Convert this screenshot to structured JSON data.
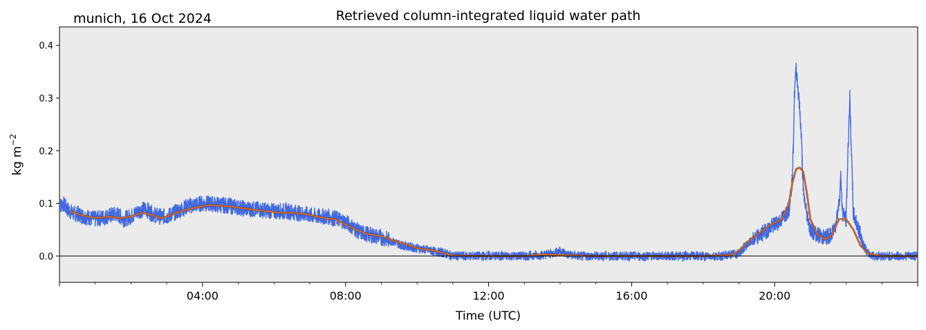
{
  "location_date": "munich, 16 Oct 2024",
  "chart_data": {
    "type": "line",
    "title": "Retrieved column-integrated liquid water path",
    "xlabel": "Time (UTC)",
    "ylabel": "kg m",
    "ylabel_superscript": "−2",
    "xlim_hours": [
      0,
      24
    ],
    "ylim": [
      -0.05,
      0.435
    ],
    "x_ticks": [
      {
        "hour": 0,
        "label": ""
      },
      {
        "hour": 4,
        "label": "04:00"
      },
      {
        "hour": 8,
        "label": "08:00"
      },
      {
        "hour": 12,
        "label": "12:00"
      },
      {
        "hour": 16,
        "label": "16:00"
      },
      {
        "hour": 20,
        "label": "20:00"
      },
      {
        "hour": 24,
        "label": ""
      }
    ],
    "x_minor_ticks": [
      1,
      2,
      3,
      5,
      6,
      7,
      9,
      10,
      11,
      13,
      14,
      15,
      17,
      18,
      19,
      21,
      22,
      23
    ],
    "y_ticks": [
      {
        "value": 0.0,
        "label": "0.0"
      },
      {
        "value": 0.1,
        "label": "0.1"
      },
      {
        "value": 0.2,
        "label": "0.2"
      },
      {
        "value": 0.3,
        "label": "0.3"
      },
      {
        "value": 0.4,
        "label": "0.4"
      }
    ],
    "zero_line": 0.0,
    "background": "#ebebeb",
    "series": [
      {
        "kind": "raw",
        "color": "#4169e1",
        "x_hours": [
          0.0,
          0.1,
          0.2,
          0.3,
          0.4,
          0.5,
          0.7,
          1.0,
          1.3,
          1.6,
          1.8,
          2.0,
          2.2,
          2.4,
          2.6,
          2.8,
          3.0,
          3.3,
          3.6,
          4.0,
          4.4,
          4.8,
          5.2,
          5.6,
          6.0,
          6.4,
          6.8,
          7.2,
          7.5,
          7.8,
          8.0,
          8.2,
          8.4,
          8.7,
          9.0,
          9.3,
          9.6,
          10.0,
          10.4,
          10.8,
          11.0,
          11.5,
          12.0,
          12.5,
          13.0,
          13.5,
          13.8,
          14.0,
          14.2,
          14.5,
          15.0,
          16.0,
          17.0,
          18.0,
          18.5,
          19.0,
          19.2,
          19.5,
          19.8,
          20.0,
          20.2,
          20.4,
          20.5,
          20.55,
          20.6,
          20.65,
          20.7,
          20.75,
          20.8,
          20.9,
          21.0,
          21.2,
          21.4,
          21.6,
          21.7,
          21.8,
          21.85,
          21.9,
          22.0,
          22.05,
          22.1,
          22.2,
          22.3,
          22.4,
          22.5,
          22.6,
          22.8,
          23.0,
          23.5,
          24.0
        ],
        "values": [
          0.095,
          0.1,
          0.09,
          0.085,
          0.08,
          0.08,
          0.075,
          0.07,
          0.075,
          0.08,
          0.07,
          0.075,
          0.085,
          0.09,
          0.08,
          0.075,
          0.075,
          0.085,
          0.095,
          0.1,
          0.098,
          0.095,
          0.09,
          0.088,
          0.085,
          0.085,
          0.08,
          0.075,
          0.075,
          0.07,
          0.065,
          0.055,
          0.045,
          0.04,
          0.035,
          0.028,
          0.02,
          0.015,
          0.01,
          0.005,
          0.0,
          0.0,
          0.0,
          0.0,
          0.0,
          0.002,
          0.005,
          0.01,
          0.003,
          0.0,
          0.0,
          0.0,
          0.0,
          0.0,
          0.0,
          0.005,
          0.02,
          0.035,
          0.05,
          0.06,
          0.07,
          0.09,
          0.15,
          0.3,
          0.36,
          0.32,
          0.28,
          0.22,
          0.12,
          0.08,
          0.05,
          0.04,
          0.035,
          0.04,
          0.06,
          0.1,
          0.15,
          0.08,
          0.07,
          0.2,
          0.3,
          0.08,
          0.06,
          0.04,
          0.02,
          0.005,
          0.0,
          0.0,
          0.0,
          0.0
        ]
      },
      {
        "kind": "smoothed",
        "color": "#e8743b",
        "x_hours": [
          0.3,
          0.6,
          1.0,
          1.4,
          1.7,
          2.0,
          2.3,
          2.6,
          2.8,
          3.0,
          3.4,
          3.8,
          4.2,
          4.6,
          5.0,
          5.4,
          5.8,
          6.2,
          6.6,
          7.0,
          7.4,
          7.7,
          8.0,
          8.3,
          8.6,
          9.0,
          9.3,
          9.7,
          10.0,
          10.5,
          11.0,
          12.0,
          13.0,
          13.5,
          14.0,
          15.0,
          16.0,
          17.0,
          18.0,
          18.8,
          19.0,
          19.3,
          19.6,
          19.9,
          20.2,
          20.4,
          20.5,
          20.6,
          20.7,
          20.8,
          20.9,
          21.0,
          21.2,
          21.4,
          21.6,
          21.8,
          22.0,
          22.2,
          22.4,
          22.6,
          22.8,
          23.0,
          24.0
        ],
        "values": [
          0.085,
          0.078,
          0.072,
          0.075,
          0.072,
          0.075,
          0.082,
          0.078,
          0.072,
          0.075,
          0.085,
          0.092,
          0.097,
          0.095,
          0.092,
          0.088,
          0.085,
          0.082,
          0.082,
          0.078,
          0.072,
          0.07,
          0.06,
          0.05,
          0.042,
          0.038,
          0.03,
          0.022,
          0.015,
          0.01,
          0.001,
          0.0,
          0.0,
          0.003,
          0.002,
          0.0,
          0.0,
          0.0,
          0.0,
          0.002,
          0.01,
          0.03,
          0.045,
          0.06,
          0.07,
          0.1,
          0.14,
          0.165,
          0.168,
          0.16,
          0.12,
          0.07,
          0.04,
          0.032,
          0.04,
          0.07,
          0.07,
          0.05,
          0.02,
          0.005,
          0.002,
          0.0,
          0.0
        ]
      }
    ]
  }
}
